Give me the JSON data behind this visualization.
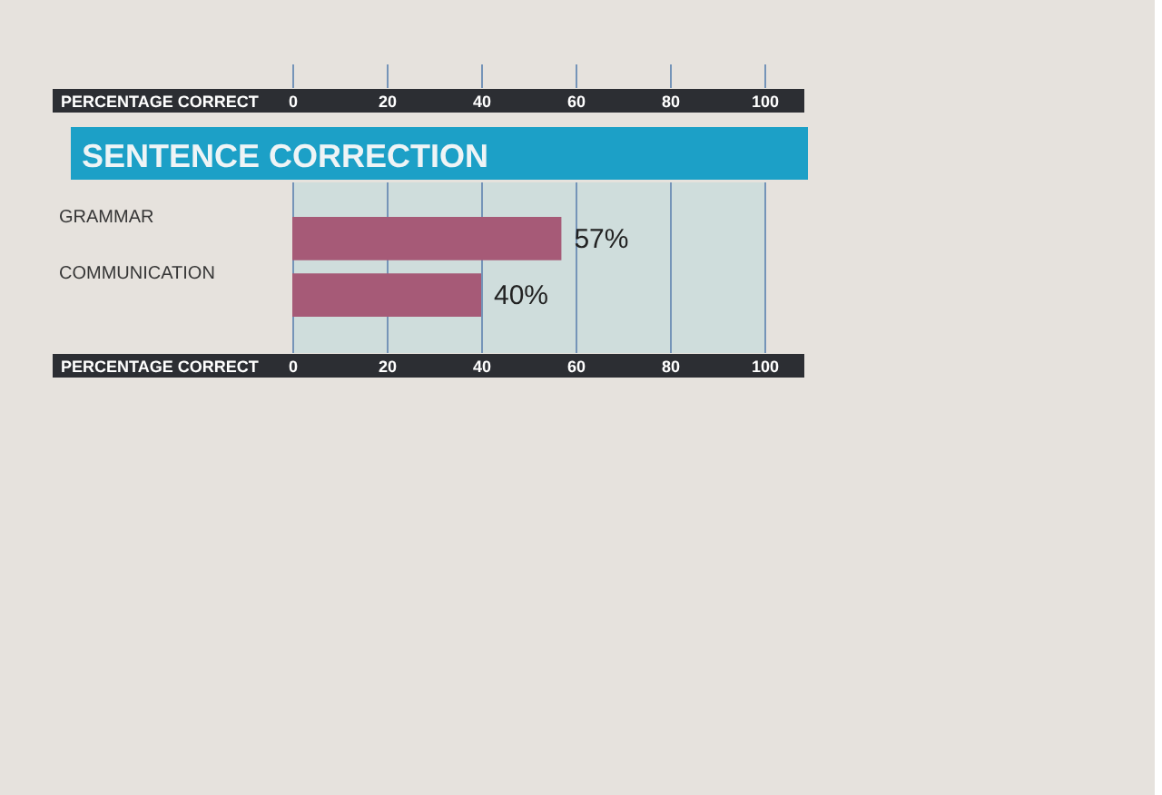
{
  "chart_data": [
    {
      "type": "bar",
      "orientation": "horizontal",
      "categories": [
        null
      ],
      "values": [
        null
      ],
      "xlabel": "PERCENTAGE CORRECT",
      "xlim": [
        0,
        100
      ],
      "xticks": [
        0,
        20,
        40,
        60,
        80,
        100
      ],
      "grid": "x",
      "tick_labels": "x"
    },
    {
      "type": "bar",
      "orientation": "horizontal",
      "title": "SENTENCE CORRECTION",
      "categories": [
        "GRAMMAR",
        "COMMUNICATION"
      ],
      "values": [
        57,
        40
      ],
      "color": "#a65a77",
      "value_labels": [
        "57%",
        "40%"
      ],
      "xlabel": "PERCENTAGE CORRECT",
      "xlim": [
        0,
        100
      ],
      "xticks": [
        0,
        20,
        40,
        60,
        80,
        100
      ],
      "grid": "x"
    }
  ]
}
